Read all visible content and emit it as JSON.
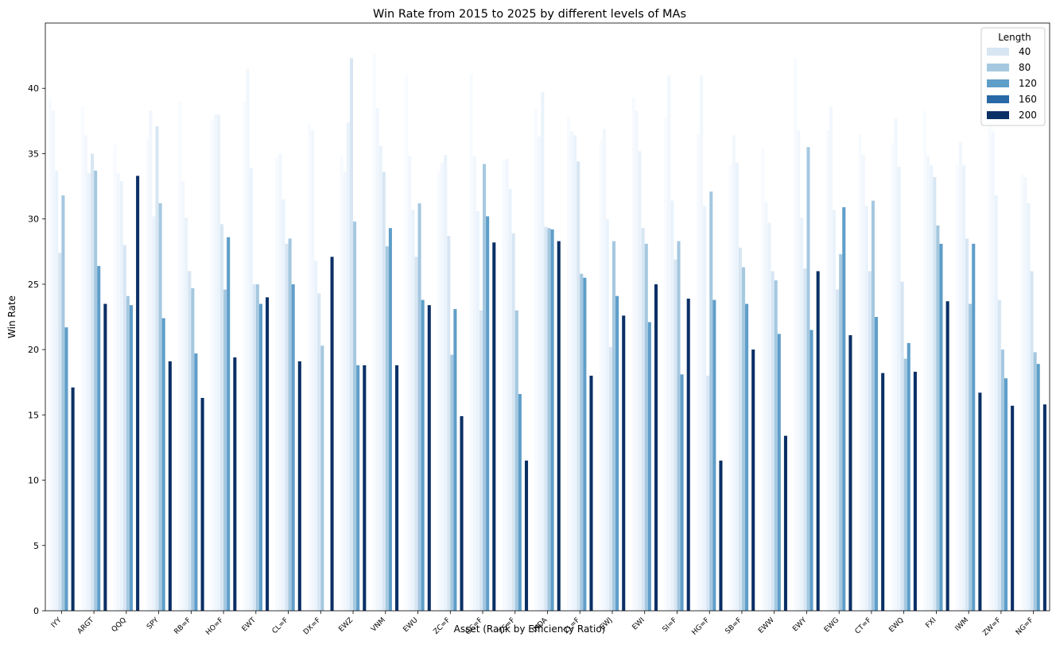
{
  "chart_data": {
    "type": "bar",
    "title": "Win Rate from 2015 to 2025 by different levels of MAs",
    "xlabel": "Asset (Rank by Efficiency Ratio)",
    "ylabel": "Win Rate",
    "ylim": [
      0,
      45
    ],
    "yticks": [
      0,
      5,
      10,
      15,
      20,
      25,
      30,
      35,
      40
    ],
    "grid": false,
    "legend": {
      "title": "Length",
      "placement": "top-right",
      "entries": [
        "40",
        "80",
        "120",
        "160",
        "200"
      ]
    },
    "categories": [
      "IYY",
      "ARGT",
      "QQQ",
      "SPY",
      "RB=F",
      "HO=F",
      "EWT",
      "CL=F",
      "DX=F",
      "EWZ",
      "VNM",
      "EWU",
      "ZC=F",
      "GC=F",
      "ZS=F",
      "INDA",
      "ZL=F",
      "EWJ",
      "EWI",
      "SI=F",
      "HG=F",
      "SB=F",
      "EWW",
      "EWY",
      "EWG",
      "CT=F",
      "EWQ",
      "FXI",
      "IWM",
      "ZW=F",
      "NG=F"
    ],
    "series": [
      {
        "name": "",
        "color": "#f7fbff",
        "values": [
          39.2,
          38.6,
          35.7,
          36.2,
          39.0,
          37.6,
          39.0,
          34.8,
          37.2,
          34.8,
          42.7,
          41.0,
          33.6,
          41.1,
          34.5,
          38.4,
          37.8,
          36.0,
          39.3,
          37.8,
          36.5,
          34.1,
          35.4,
          42.3,
          36.8,
          36.5,
          35.8,
          38.3,
          34.1,
          37.5,
          33.4
        ]
      },
      {
        "name": "",
        "color": "#f1f7fd",
        "values": [
          38.3,
          36.4,
          33.5,
          38.3,
          32.9,
          38.0,
          41.5,
          35.0,
          36.8,
          33.6,
          38.5,
          34.8,
          34.3,
          34.8,
          34.6,
          36.3,
          36.7,
          36.9,
          38.3,
          41.0,
          41.0,
          36.4,
          31.3,
          36.8,
          38.6,
          34.9,
          37.7,
          34.8,
          35.9,
          36.7,
          33.2
        ]
      },
      {
        "name": "",
        "color": "#eaf3fb",
        "values": [
          33.7,
          33.5,
          32.9,
          30.2,
          30.1,
          38.0,
          33.9,
          31.5,
          26.8,
          37.4,
          35.6,
          30.7,
          34.9,
          30.6,
          32.3,
          39.7,
          36.4,
          30.0,
          35.2,
          31.4,
          31.0,
          34.3,
          29.7,
          30.1,
          30.7,
          31.0,
          34.0,
          34.1,
          34.1,
          31.8,
          31.2
        ]
      },
      {
        "name": "40",
        "color": "#d8e6f3",
        "values": [
          27.4,
          35.0,
          28.0,
          37.1,
          26.0,
          29.6,
          25.0,
          28.1,
          24.3,
          42.3,
          33.6,
          27.1,
          28.7,
          23.0,
          28.9,
          29.4,
          34.4,
          20.2,
          29.3,
          26.9,
          18.0,
          27.8,
          26.0,
          26.2,
          24.6,
          26.0,
          25.2,
          33.2,
          28.5,
          23.8,
          26.0
        ]
      },
      {
        "name": "80",
        "color": "#a5c8e0",
        "values": [
          31.8,
          33.7,
          24.1,
          31.2,
          24.7,
          24.6,
          25.0,
          28.5,
          20.3,
          29.8,
          27.9,
          31.2,
          19.6,
          34.2,
          23.0,
          29.3,
          25.8,
          28.3,
          28.1,
          28.3,
          32.1,
          26.3,
          25.3,
          35.5,
          27.3,
          31.4,
          19.3,
          29.5,
          23.5,
          20.0,
          19.8
        ]
      },
      {
        "name": "120",
        "color": "#5f9ec9",
        "values": [
          21.7,
          26.4,
          23.4,
          22.4,
          19.7,
          28.6,
          23.5,
          25.0,
          0,
          18.8,
          29.3,
          23.8,
          23.1,
          30.2,
          16.6,
          29.2,
          25.5,
          24.1,
          22.1,
          18.1,
          23.8,
          23.5,
          21.2,
          21.5,
          30.9,
          22.5,
          20.5,
          28.1,
          28.1,
          17.8,
          18.9
        ]
      },
      {
        "name": "160",
        "color": "#2868a6",
        "values": [
          0,
          0,
          0,
          0,
          0,
          0,
          0,
          0,
          0,
          0,
          0,
          0,
          0,
          0,
          0,
          0,
          0,
          0,
          0,
          0,
          0,
          0,
          0,
          0,
          0,
          0,
          0,
          0,
          0,
          0,
          0
        ]
      },
      {
        "name": "200",
        "color": "#0b3066",
        "values": [
          17.1,
          23.5,
          33.3,
          19.1,
          16.3,
          19.4,
          24.0,
          19.1,
          27.1,
          18.8,
          18.8,
          23.4,
          14.9,
          28.2,
          11.5,
          28.3,
          18.0,
          22.6,
          25.0,
          23.9,
          11.5,
          20.0,
          13.4,
          26.0,
          21.1,
          18.2,
          18.3,
          23.7,
          16.7,
          15.7,
          15.8
        ]
      }
    ]
  }
}
